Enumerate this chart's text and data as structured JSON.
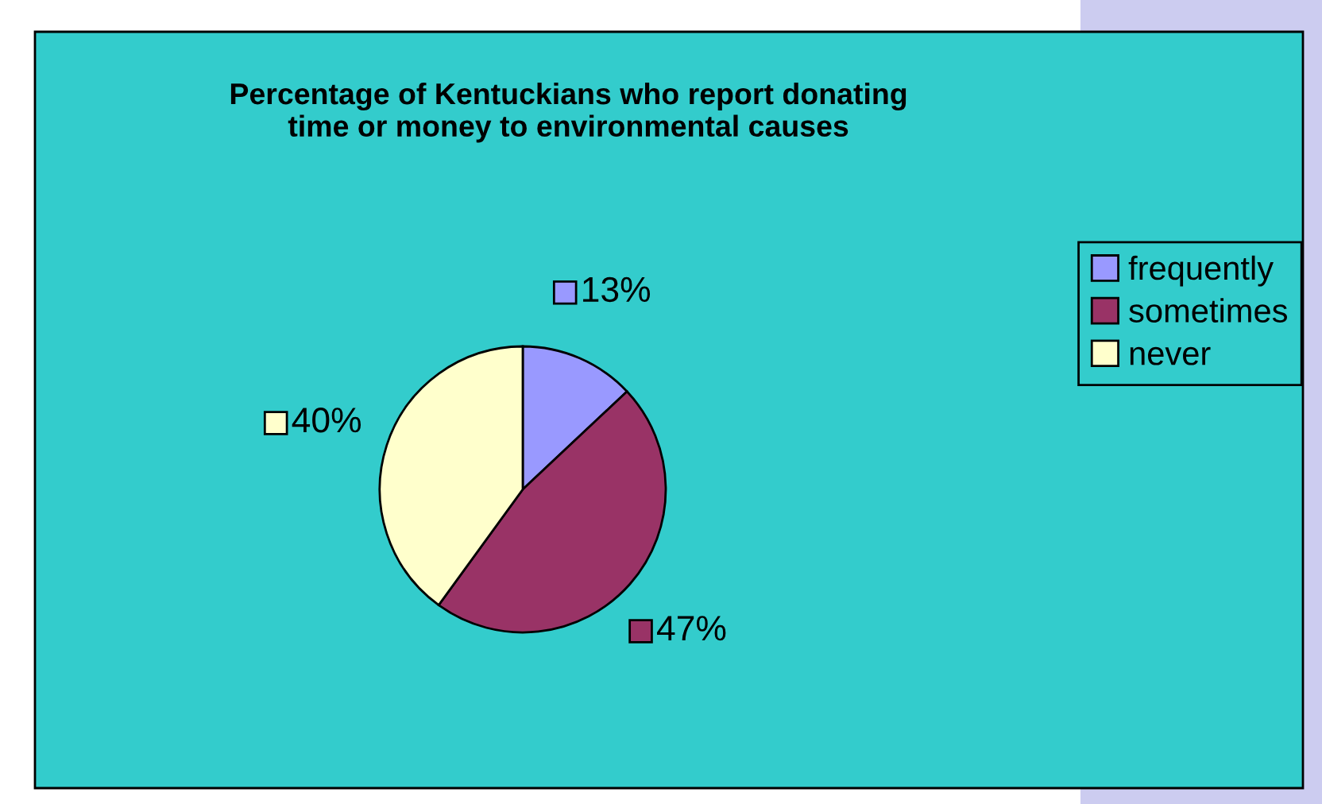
{
  "chart_data": {
    "type": "pie",
    "title": "Percentage of Kentuckians who report donating\ntime or money to environmental causes",
    "categories": [
      "frequently",
      "sometimes",
      "never"
    ],
    "values": [
      13,
      47,
      40
    ],
    "colors": [
      "#9999ff",
      "#993366",
      "#ffffcc"
    ],
    "value_labels": [
      "13%",
      "47%",
      "40%"
    ],
    "legend": "right"
  }
}
